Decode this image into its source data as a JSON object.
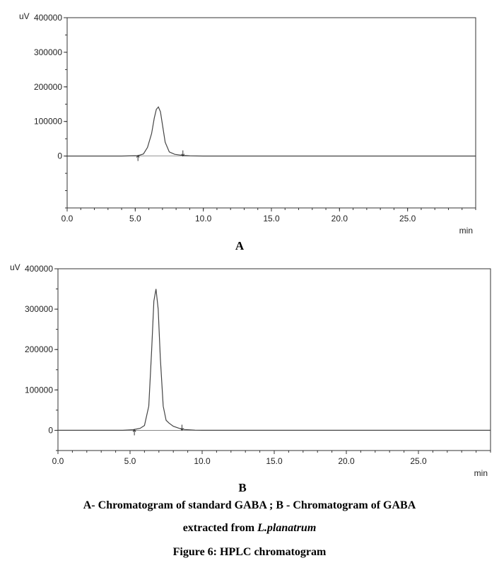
{
  "chart_data": [
    {
      "type": "line",
      "panel_label": "A",
      "y_unit": "uV",
      "x_unit": "min",
      "xlim": [
        0,
        30
      ],
      "ylim": [
        -150000,
        400000
      ],
      "x_ticks": [
        "0.0",
        "5.0",
        "10.0",
        "15.0",
        "20.0",
        "25.0"
      ],
      "y_ticks": [
        "400000",
        "300000",
        "200000",
        "100000",
        "0"
      ],
      "grid": false,
      "series": [
        {
          "x": [
            0,
            4.0,
            5.2,
            5.6,
            5.9,
            6.2,
            6.4,
            6.55,
            6.7,
            6.85,
            7.0,
            7.2,
            7.5,
            7.9,
            8.3,
            8.6,
            9.0,
            10,
            15,
            20,
            25,
            30
          ],
          "y": [
            0,
            0,
            1000,
            6000,
            25000,
            65000,
            110000,
            135000,
            142000,
            128000,
            90000,
            40000,
            12000,
            5000,
            3000,
            1500,
            500,
            0,
            0,
            0,
            0,
            0
          ]
        }
      ],
      "integration_markers": [
        {
          "x": 5.2,
          "direction": "up"
        },
        {
          "x": 8.5,
          "direction": "down"
        }
      ]
    },
    {
      "type": "line",
      "panel_label": "B",
      "y_unit": "uV",
      "x_unit": "min",
      "xlim": [
        0,
        30
      ],
      "ylim": [
        -50000,
        400000
      ],
      "x_ticks": [
        "0.0",
        "5.0",
        "10.0",
        "15.0",
        "20.0",
        "25.0"
      ],
      "y_ticks": [
        "400000",
        "300000",
        "200000",
        "100000",
        "0"
      ],
      "grid": false,
      "series": [
        {
          "x": [
            0,
            4.5,
            5.2,
            5.7,
            6.0,
            6.3,
            6.5,
            6.65,
            6.8,
            6.95,
            7.1,
            7.3,
            7.5,
            7.7,
            8.0,
            8.4,
            8.8,
            9.5,
            10,
            15,
            20,
            25,
            30
          ],
          "y": [
            0,
            0,
            1500,
            5000,
            12000,
            60000,
            200000,
            320000,
            350000,
            300000,
            180000,
            60000,
            25000,
            18000,
            10000,
            5000,
            2000,
            500,
            0,
            0,
            0,
            0,
            0
          ]
        }
      ],
      "integration_markers": [
        {
          "x": 5.3,
          "direction": "up"
        },
        {
          "x": 8.6,
          "direction": "down"
        }
      ]
    }
  ],
  "caption": {
    "line1": "A-  Chromatogram of standard GABA ; B - Chromatogram of GABA",
    "line2_prefix": "extracted from ",
    "line2_species": "L.planatrum",
    "line3": "Figure 6: HPLC chromatogram"
  }
}
